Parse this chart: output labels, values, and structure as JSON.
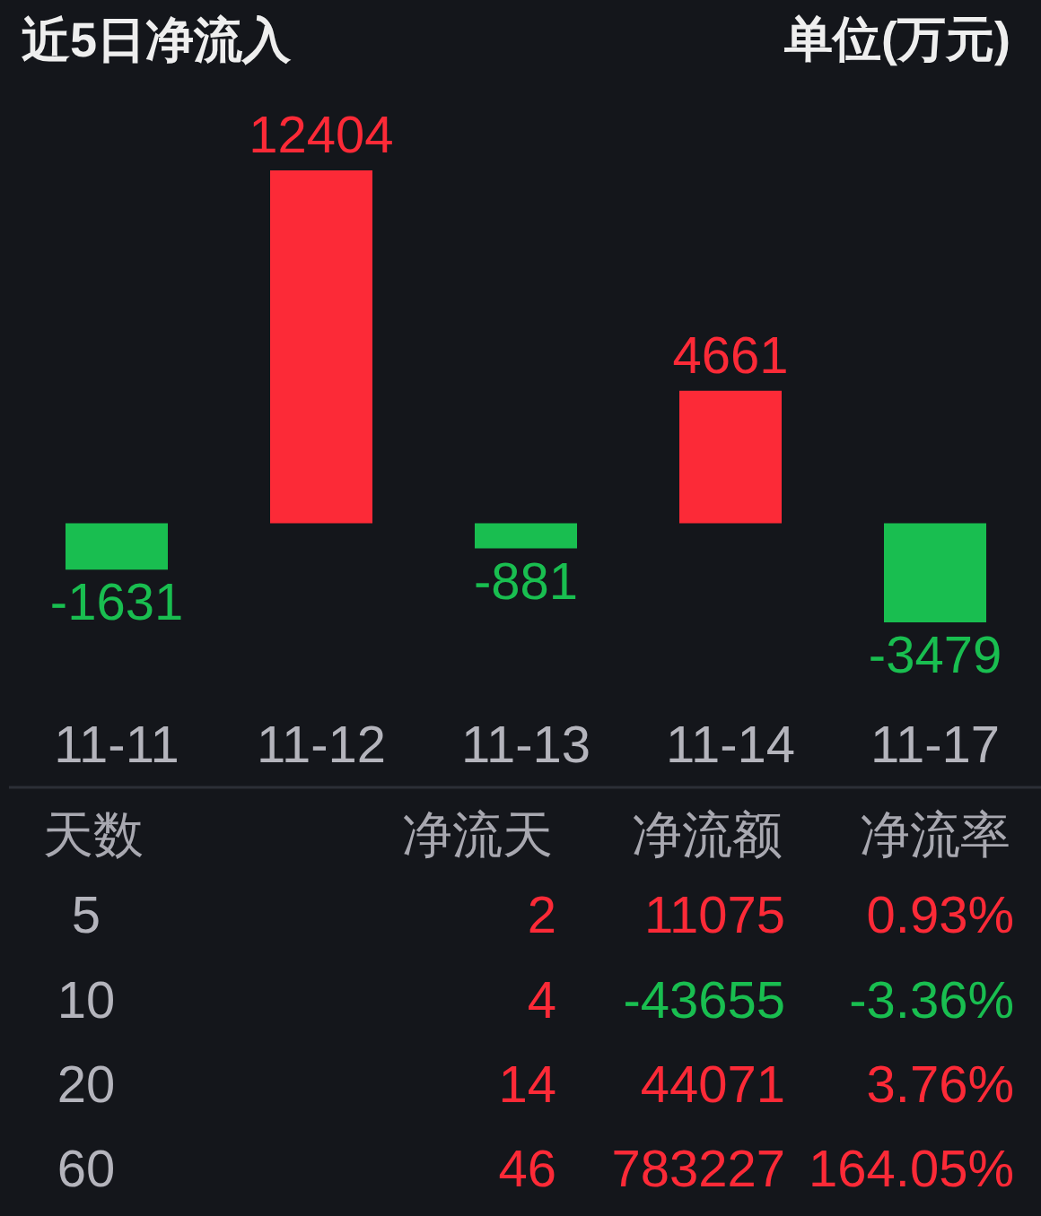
{
  "chart_data": [
    {
      "type": "bar",
      "title": "近5日净流入",
      "annotations": [
        "单位(万元)"
      ],
      "categories": [
        "11-11",
        "11-12",
        "11-13",
        "11-14",
        "11-17"
      ],
      "values": [
        -1631,
        12404,
        -881,
        4661,
        -3479
      ],
      "colors": [
        "#19be50",
        "#fc2a37",
        "#19be50",
        "#fc2a37",
        "#19be50"
      ],
      "data_labels": true
    },
    {
      "type": "other",
      "ylabel": "天数",
      "categories": [
        "5",
        "10",
        "20",
        "60"
      ],
      "data_labels": true,
      "series": [
        {
          "name": "净流天",
          "values": [
            2,
            4,
            14,
            46
          ],
          "colors": [
            "#fc2a37",
            "#fc2a37",
            "#fc2a37",
            "#fc2a37"
          ]
        },
        {
          "name": "净流额",
          "values": [
            11075,
            -43655,
            44071,
            783227
          ],
          "colors": [
            "#fc2a37",
            "#19be50",
            "#fc2a37",
            "#fc2a37"
          ]
        },
        {
          "name": "净流率",
          "values": [
            0.93,
            -3.36,
            3.76,
            164.05
          ],
          "value_labels": [
            "0.93%",
            "-3.36%",
            "3.76%",
            "164.05%"
          ],
          "colors": [
            "#fc2a37",
            "#19be50",
            "#fc2a37",
            "#fc2a37"
          ]
        }
      ]
    }
  ]
}
